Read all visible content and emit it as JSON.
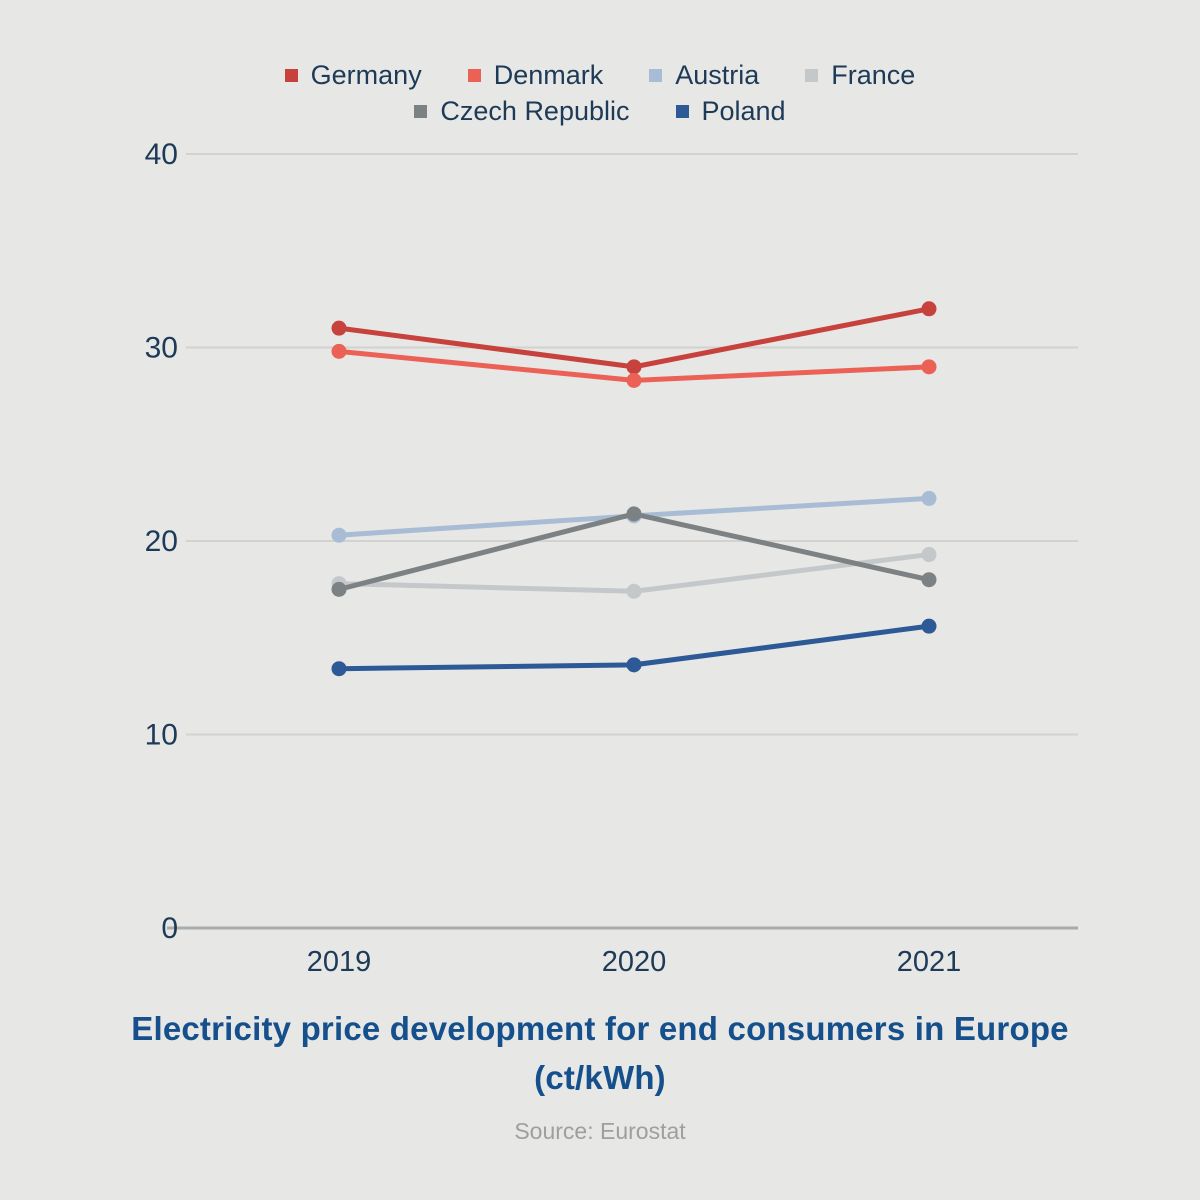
{
  "chart_data": {
    "type": "line",
    "x": [
      "2019",
      "2020",
      "2021"
    ],
    "series": [
      {
        "name": "Germany",
        "color": "#c7423c",
        "values": [
          31.0,
          29.0,
          32.0
        ]
      },
      {
        "name": "Denmark",
        "color": "#ec6155",
        "values": [
          29.8,
          28.3,
          29.0
        ]
      },
      {
        "name": "Austria",
        "color": "#a8bdd5",
        "values": [
          20.3,
          21.3,
          22.2
        ]
      },
      {
        "name": "France",
        "color": "#c5c8cb",
        "values": [
          17.8,
          17.4,
          19.3
        ]
      },
      {
        "name": "Czech Republic",
        "color": "#7c8184",
        "values": [
          17.5,
          21.4,
          18.0
        ]
      },
      {
        "name": "Poland",
        "color": "#2d5996",
        "values": [
          13.4,
          13.6,
          15.6
        ]
      }
    ],
    "yticks": [
      0,
      10,
      20,
      30,
      40
    ],
    "ylim": [
      0,
      42
    ],
    "grid": true,
    "legend_position": "top",
    "legend_rows": [
      [
        0,
        1,
        2,
        3
      ],
      [
        4,
        5
      ]
    ],
    "title": "Electricity price development for end consumers in Europe (ct/kWh)",
    "source": "Source: Eurostat"
  },
  "colors": {
    "background": "#e7e7e5",
    "gridline": "#d2d2d0",
    "axis_line": "#a9acae",
    "tick_label": "#1d3a57",
    "legend_text": "#1d3a57",
    "title": "#15508d",
    "source": "#9da09d"
  }
}
